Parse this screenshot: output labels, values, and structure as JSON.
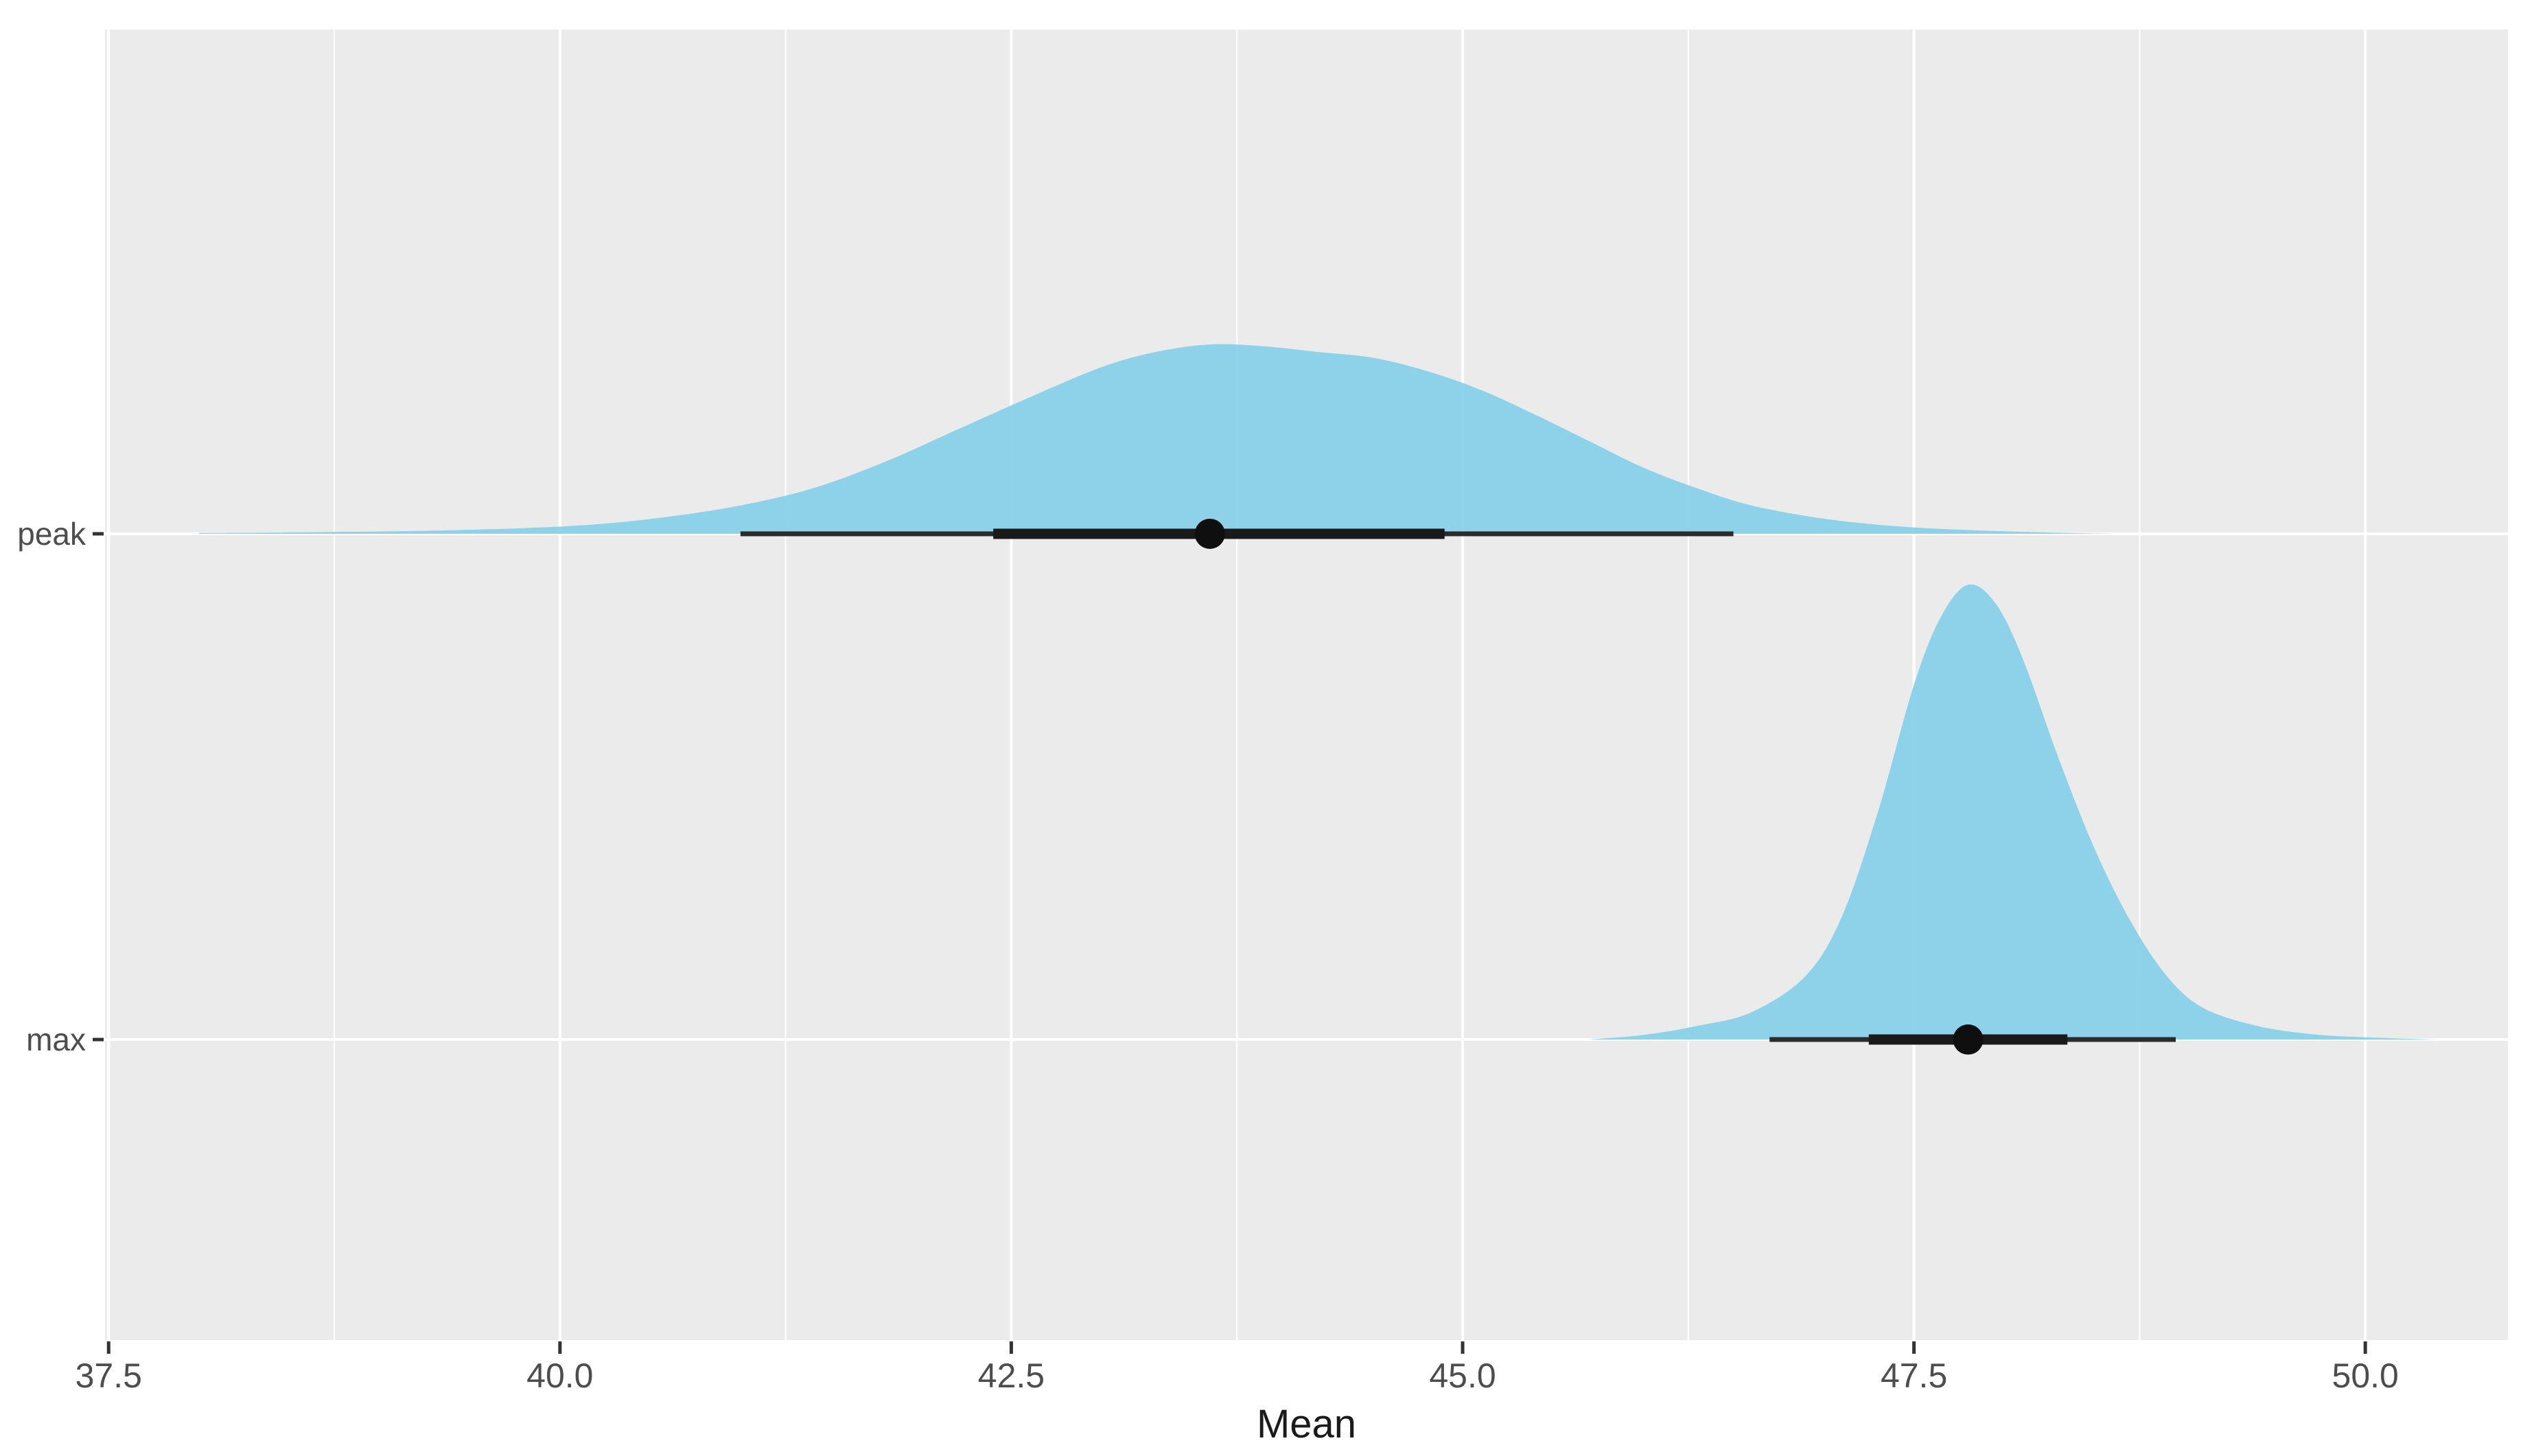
{
  "chart_data": {
    "type": "density",
    "variant": "halfeye-point-interval",
    "title": "",
    "xlabel": "Mean",
    "ylabel": "",
    "legend": "none",
    "grid": "on",
    "panel_bg": "#EBEBEB",
    "grid_color": "#FFFFFF",
    "xlim": [
      37.48,
      50.79
    ],
    "x_ticks": [
      "37.5",
      "40.0",
      "42.5",
      "45.0",
      "47.5",
      "50.0"
    ],
    "x_tick_values": [
      37.5,
      40.0,
      42.5,
      45.0,
      47.5,
      50.0
    ],
    "x_minor_tick_values": [
      38.75,
      41.25,
      43.75,
      46.25,
      48.75
    ],
    "categories": [
      "peak",
      "max"
    ],
    "series": [
      {
        "name": "peak",
        "row_frac": 0.3848,
        "height_frac": 0.1445,
        "median": 43.6,
        "interval_thick": [
          42.4,
          44.9
        ],
        "interval_thin": [
          41.0,
          46.5
        ],
        "density": {
          "x": [
            38.0,
            38.6,
            39.2,
            39.8,
            40.2,
            40.6,
            41.0,
            41.4,
            41.8,
            42.2,
            42.6,
            43.0,
            43.3,
            43.6,
            43.9,
            44.2,
            44.5,
            44.8,
            45.1,
            45.4,
            45.7,
            46.0,
            46.3,
            46.6,
            47.0,
            47.4,
            47.8,
            48.2,
            48.6
          ],
          "h": [
            0.004,
            0.008,
            0.015,
            0.03,
            0.05,
            0.09,
            0.15,
            0.24,
            0.38,
            0.55,
            0.72,
            0.88,
            0.96,
            1.0,
            0.99,
            0.96,
            0.93,
            0.86,
            0.76,
            0.63,
            0.49,
            0.35,
            0.24,
            0.15,
            0.08,
            0.04,
            0.02,
            0.008,
            0.0
          ]
        }
      },
      {
        "name": "max",
        "row_frac": 0.7707,
        "height_frac": 0.347,
        "median": 47.8,
        "interval_thick": [
          47.25,
          48.35
        ],
        "interval_thin": [
          46.7,
          48.95
        ],
        "density": {
          "x": [
            45.7,
            46.0,
            46.3,
            46.6,
            46.9,
            47.1,
            47.3,
            47.5,
            47.65,
            47.8,
            47.95,
            48.1,
            48.3,
            48.5,
            48.7,
            48.9,
            49.1,
            49.4,
            49.7,
            50.0,
            50.4
          ],
          "h": [
            0.0,
            0.01,
            0.03,
            0.06,
            0.14,
            0.27,
            0.5,
            0.78,
            0.93,
            1.0,
            0.96,
            0.84,
            0.62,
            0.42,
            0.26,
            0.14,
            0.07,
            0.03,
            0.012,
            0.005,
            0.0
          ]
        }
      }
    ],
    "colors": {
      "slab_fill": "#87D0E9",
      "interval_thick": "#1A1A1A",
      "interval_thin": "#2B2B2B",
      "median_dot": "#0F0F0F",
      "tick_mark": "#333333",
      "tick_text": "#4D4D4D",
      "axis_title": "#1A1A1A"
    }
  }
}
